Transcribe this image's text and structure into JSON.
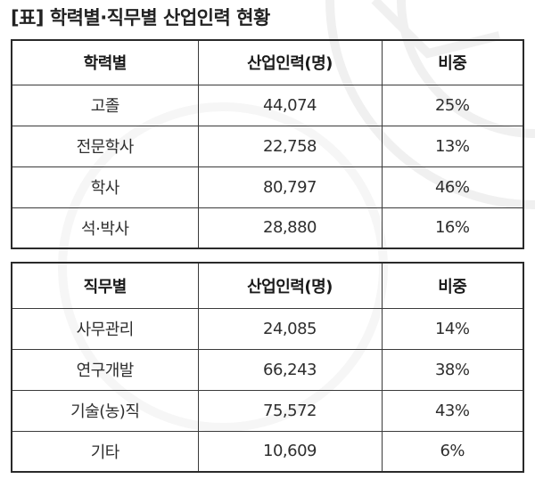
{
  "title": "[표] 학력별·직무별 산업인력 현황",
  "education_table": {
    "headers": [
      "학력별",
      "산업인력(명)",
      "비중"
    ],
    "rows": [
      [
        "고졸",
        "44,074",
        "25%"
      ],
      [
        "전문학사",
        "22,758",
        "13%"
      ],
      [
        "학사",
        "80,797",
        "46%"
      ],
      [
        "석·박사",
        "28,880",
        "16%"
      ]
    ]
  },
  "job_table": {
    "headers": [
      "직무별",
      "산업인력(명)",
      "비중"
    ],
    "rows": [
      [
        "사무관리",
        "24,085",
        "14%"
      ],
      [
        "연구개발",
        "66,243",
        "38%"
      ],
      [
        "기술(농)직",
        "75,572",
        "43%"
      ],
      [
        "기타",
        "10,609",
        "6%"
      ]
    ]
  }
}
